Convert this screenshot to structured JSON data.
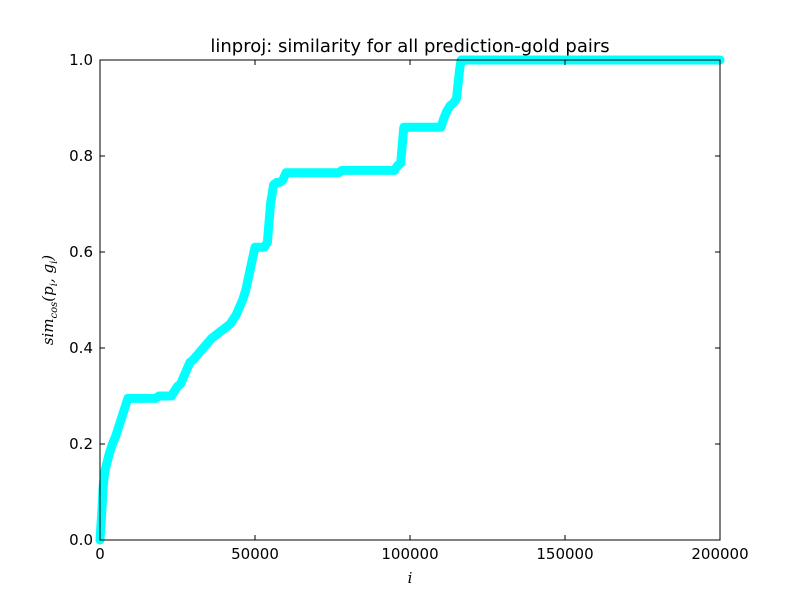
{
  "chart_data": {
    "type": "line",
    "title": "linproj: similarity for all prediction-gold pairs",
    "xlabel": "i",
    "ylabel": {
      "base": "sim",
      "sub": "cos",
      "args": "(p",
      "arg1_sub": "i",
      "mid": ", g",
      "arg2_sub": "i",
      "close": ")"
    },
    "xlim": [
      0,
      200000
    ],
    "ylim": [
      0.0,
      1.0
    ],
    "x_ticks": [
      0,
      50000,
      100000,
      150000,
      200000
    ],
    "x_tick_labels": [
      "0",
      "50000",
      "100000",
      "150000",
      "200000"
    ],
    "y_ticks": [
      0.0,
      0.2,
      0.4,
      0.6,
      0.8,
      1.0
    ],
    "y_tick_labels": [
      "0.0",
      "0.2",
      "0.4",
      "0.6",
      "0.8",
      "1.0"
    ],
    "grid": false,
    "series": [
      {
        "color": "#00ffff",
        "x": [
          0,
          500,
          1000,
          1500,
          2000,
          3000,
          4000,
          5000,
          6000,
          7000,
          8000,
          9000,
          18000,
          19000,
          23000,
          24000,
          25000,
          26000,
          27000,
          28000,
          29000,
          30000,
          32000,
          34000,
          36000,
          38000,
          40000,
          42000,
          44000,
          46000,
          47000,
          48000,
          49000,
          50000,
          53000,
          54000,
          55000,
          56000,
          57000,
          58000,
          59000,
          60000,
          77000,
          78000,
          95000,
          96000,
          97000,
          98000,
          110000,
          111000,
          112000,
          113000,
          114000,
          115000,
          116000,
          116500,
          117000,
          200000
        ],
        "y": [
          0.0,
          0.05,
          0.11,
          0.14,
          0.155,
          0.18,
          0.2,
          0.215,
          0.235,
          0.255,
          0.275,
          0.295,
          0.295,
          0.3,
          0.3,
          0.31,
          0.32,
          0.325,
          0.34,
          0.355,
          0.37,
          0.375,
          0.39,
          0.405,
          0.42,
          0.43,
          0.44,
          0.45,
          0.47,
          0.5,
          0.52,
          0.55,
          0.58,
          0.61,
          0.61,
          0.62,
          0.7,
          0.74,
          0.745,
          0.745,
          0.75,
          0.765,
          0.765,
          0.77,
          0.77,
          0.78,
          0.785,
          0.86,
          0.86,
          0.88,
          0.895,
          0.905,
          0.91,
          0.92,
          0.98,
          1.0,
          1.0,
          1.0
        ]
      }
    ]
  }
}
